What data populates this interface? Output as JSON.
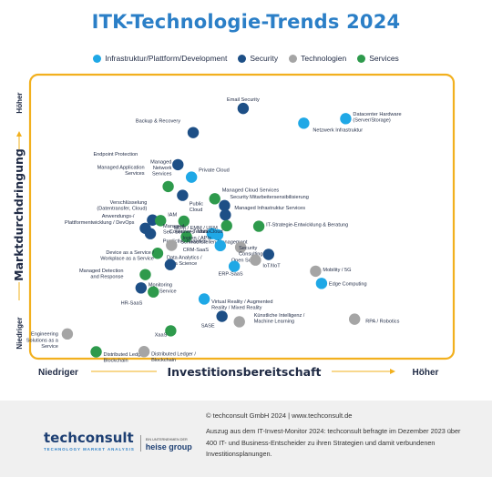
{
  "chart_data": {
    "type": "scatter",
    "title": "ITK-Technologie-Trends 2024",
    "xlabel": "Investitionsbereitschaft",
    "ylabel": "Marktdurchdringung",
    "x_low": "Niedriger",
    "x_high": "Höher",
    "y_low": "Niedriger",
    "y_high": "Höher",
    "xlim": [
      0,
      100
    ],
    "ylim": [
      0,
      100
    ],
    "grid": false,
    "legend_position": "top",
    "categories": [
      {
        "key": "infra",
        "name": "Infrastruktur/Plattform/Development",
        "color": "#1fa8e6"
      },
      {
        "key": "sec",
        "name": "Security",
        "color": "#1d4f86"
      },
      {
        "key": "tech",
        "name": "Technologien",
        "color": "#a5a5a5"
      },
      {
        "key": "serv",
        "name": "Services",
        "color": "#2e9a4c"
      }
    ],
    "points": [
      {
        "label": "Email Security",
        "cat": "sec",
        "x": 50.3,
        "y": 88.1
      },
      {
        "label": "Datacenter Hardware\n(Server/Storage)",
        "cat": "infra",
        "x": 74.5,
        "y": 84.5
      },
      {
        "label": "Backup & Recovery",
        "cat": "sec",
        "x": 38.5,
        "y": 79.6
      },
      {
        "label": "Netzwerk Infrastruktur",
        "cat": "infra",
        "x": 64.6,
        "y": 82.9
      },
      {
        "label": "Endpoint Protection",
        "cat": "sec",
        "x": 34.9,
        "y": 68.3
      },
      {
        "label": "Private Cloud",
        "cat": "infra",
        "x": 38.1,
        "y": 63.9
      },
      {
        "label": "Managed Application\nServices",
        "cat": "serv",
        "x": 32.6,
        "y": 60.6
      },
      {
        "label": "Managed\nNetwork\nServices",
        "cat": "sec",
        "x": 36.0,
        "y": 57.5
      },
      {
        "label": "Managed Cloud Services",
        "cat": "serv",
        "x": 43.6,
        "y": 56.3
      },
      {
        "label": "Security Mitarbeitersensibilisierung",
        "cat": "sec",
        "x": 45.9,
        "y": 53.9
      },
      {
        "label": "Managed Infrastruktur Services",
        "cat": "sec",
        "x": 46.1,
        "y": 50.6
      },
      {
        "label": "Verschlüsselung\n(Datentransfer, Cloud)",
        "cat": "sec",
        "x": 28.9,
        "y": 48.8
      },
      {
        "label": "IAM",
        "cat": "serv",
        "x": 30.8,
        "y": 48.6
      },
      {
        "label": "Public\nCloud",
        "cat": "serv",
        "x": 36.3,
        "y": 48.4
      },
      {
        "label": "Anwendungs-/\nPlattformentwicklung / DevOps",
        "cat": "sec",
        "x": 27.2,
        "y": 45.9
      },
      {
        "label": "Managed\nSec. Services",
        "cat": "sec",
        "x": 28.4,
        "y": 44.0
      },
      {
        "label": "IT-Strategie-Entwicklung & Beratung",
        "cat": "serv",
        "x": 54.0,
        "y": 46.6
      },
      {
        "label": "MDM / EMM / UEM",
        "cat": "serv",
        "x": 46.4,
        "y": 46.8
      },
      {
        "label": "Predictive Analytics",
        "cat": "infra",
        "x": 43.0,
        "y": 44.0
      },
      {
        "label": "CRM-SaaS",
        "cat": "infra",
        "x": 44.3,
        "y": 43.6
      },
      {
        "label": "Multi Cloud",
        "cat": "serv",
        "x": 36.9,
        "y": 42.9
      },
      {
        "label": "Schwachstellen Management",
        "cat": "tech",
        "x": 33.4,
        "y": 39.9
      },
      {
        "label": "Container-Techno-\nlogien / APIs",
        "cat": "infra",
        "x": 44.9,
        "y": 39.8
      },
      {
        "label": "Security\nConsulting",
        "cat": "tech",
        "x": 49.7,
        "y": 39.2
      },
      {
        "label": "Data Analytics /\nData Science",
        "cat": "serv",
        "x": 30.1,
        "y": 37.1
      },
      {
        "label": "Open Source",
        "cat": "sec",
        "x": 56.3,
        "y": 36.7
      },
      {
        "label": "IoT/IIoT",
        "cat": "tech",
        "x": 53.2,
        "y": 34.7
      },
      {
        "label": "Device as a Service /\nWorkplace as a Service",
        "cat": "sec",
        "x": 33.1,
        "y": 33.1
      },
      {
        "label": "ERP-SaaS",
        "cat": "infra",
        "x": 48.2,
        "y": 32.5
      },
      {
        "label": "Mobility / 5G",
        "cat": "tech",
        "x": 67.4,
        "y": 30.8
      },
      {
        "label": "Managed Detection\nand Response",
        "cat": "serv",
        "x": 27.2,
        "y": 29.6
      },
      {
        "label": "Edge Computing",
        "cat": "infra",
        "x": 68.8,
        "y": 26.5
      },
      {
        "label": "Monitoring\nas a Service",
        "cat": "sec",
        "x": 26.2,
        "y": 24.9
      },
      {
        "label": "HR-SaaS",
        "cat": "serv",
        "x": 29.1,
        "y": 23.5
      },
      {
        "label": "Virtual Reality / Augmented\nReality / Mixed Reality",
        "cat": "infra",
        "x": 41.1,
        "y": 21.0
      },
      {
        "label": "SASE",
        "cat": "sec",
        "x": 45.3,
        "y": 14.9
      },
      {
        "label": "Künstliche Intelligenz /\nMachine Learning",
        "cat": "tech",
        "x": 49.4,
        "y": 13.0
      },
      {
        "label": "RPA / Robotics",
        "cat": "tech",
        "x": 76.6,
        "y": 13.9
      },
      {
        "label": "XaaS",
        "cat": "serv",
        "x": 33.2,
        "y": 9.8
      },
      {
        "label": "Engineering\nSolutions as a\nService",
        "cat": "tech",
        "x": 8.8,
        "y": 8.7
      },
      {
        "label": "Distributed Ledger /\nBlockchain",
        "cat": "serv",
        "x": 15.6,
        "y": 2.4
      },
      {
        "label": "Distributed Ledger /\nBlockchain",
        "cat": "tech",
        "x": 26.9,
        "y": 2.5
      }
    ]
  },
  "footer": {
    "copyright": "© techconsult GmbH 2024  |  www.techconsult.de",
    "note": "Auszug aus dem IT-Invest-Monitor 2024: techconsult befragte im Dezember 2023 über 400 IT- und Business-Entscheider zu ihren Strategien und damit verbundenen Investitionsplanungen.",
    "logo_text": "techconsult",
    "logo_tagline": "TECHNOLOGY MARKET ANALYSIS",
    "logo_parent_small": "EIN UNTERNEHMEN DER",
    "logo_parent": "heise group"
  }
}
